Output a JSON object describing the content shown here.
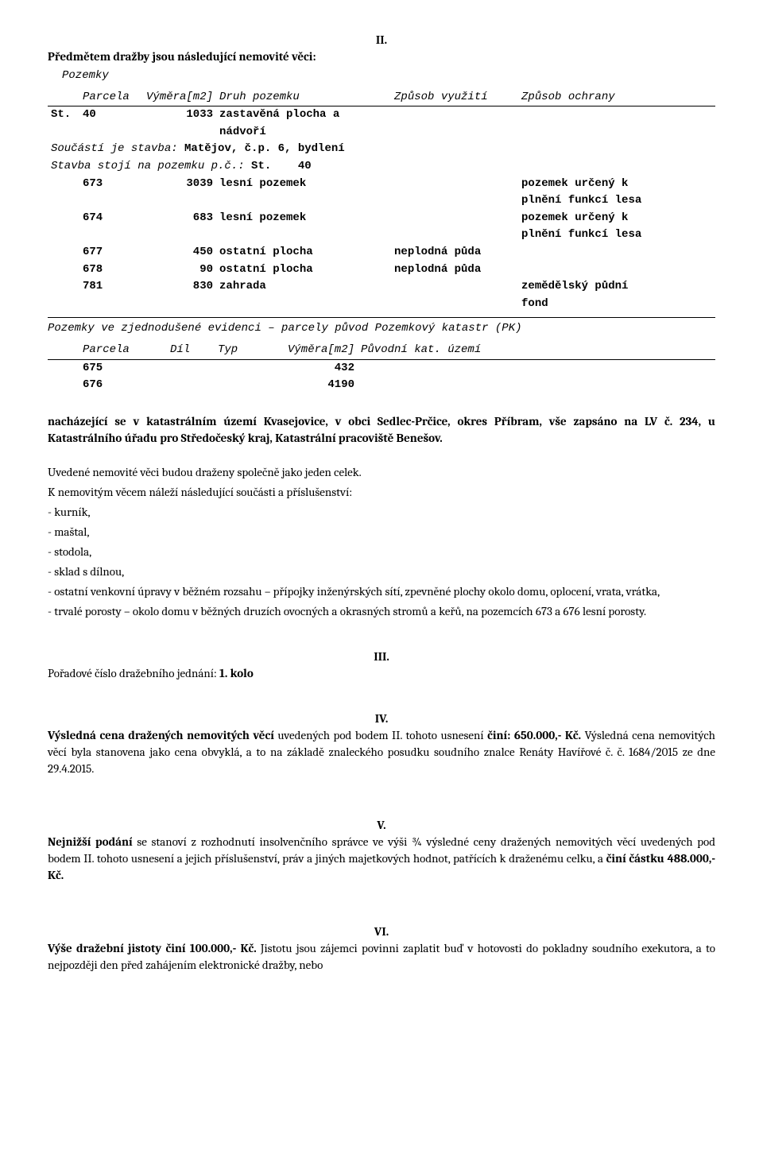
{
  "sectionII": {
    "num": "II.",
    "intro": "Předmětem dražby jsou následující nemovité věci:",
    "tableHeader": {
      "type_pozemky": "Pozemky",
      "h_parcela": "Parcela",
      "h_vymera": "Výměra[m2]",
      "h_druh": "Druh pozemku",
      "h_vyuziti": "Způsob využití",
      "h_ochrany": "Způsob ochrany"
    },
    "rows": [
      {
        "prefix": "St.",
        "parcela": "40",
        "vymera": "1033",
        "druh": "zastavěná plocha a",
        "druh2": "nádvoří",
        "vyuziti": "",
        "ochrany": ""
      },
      {
        "prefix": "",
        "parcela": "673",
        "vymera": "3039",
        "druh": "lesní pozemek",
        "vyuziti": "",
        "ochrany": "pozemek určený k",
        "ochrany2": "plnění funkcí lesa"
      },
      {
        "prefix": "",
        "parcela": "674",
        "vymera": "683",
        "druh": "lesní pozemek",
        "vyuziti": "",
        "ochrany": "pozemek určený k",
        "ochrany2": "plnění funkcí lesa"
      },
      {
        "prefix": "",
        "parcela": "677",
        "vymera": "450",
        "druh": "ostatní plocha",
        "vyuziti": "neplodná půda",
        "ochrany": ""
      },
      {
        "prefix": "",
        "parcela": "678",
        "vymera": "90",
        "druh": "ostatní plocha",
        "vyuziti": "neplodná půda",
        "ochrany": ""
      },
      {
        "prefix": "",
        "parcela": "781",
        "vymera": "830",
        "druh": "zahrada",
        "vyuziti": "",
        "ochrany": "zemědělský půdní",
        "ochrany2": "fond"
      }
    ],
    "note1_pre": "Součástí je stavba: ",
    "note1_b1": "Matějov, č.p. 6, bydlení",
    "note2_pre": "Stavba stojí na pozemku p.č.: ",
    "note2_b1": "St.",
    "note2_b2": "40",
    "simpleEvid": "Pozemky ve zjednodušené evidenci – parcely původ Pozemkový katastr (PK)",
    "simpHeader": {
      "h_parcela": "Parcela",
      "h_dil": "Díl",
      "h_typ": "Typ",
      "h_vymera": "Výměra[m2]",
      "h_puvodni": "Původní kat. území"
    },
    "simpRows": [
      {
        "parcela": "675",
        "dil": "",
        "typ": "",
        "vymera": "432",
        "puvodni": ""
      },
      {
        "parcela": "676",
        "dil": "",
        "typ": "",
        "vymera": "4190",
        "puvodni": ""
      }
    ],
    "location": {
      "pre": "nacházející se v katastrálním území Kvasejovice, v obci Sedlec-Prčice, okres Příbram, vše zapsáno na LV č. 234, u Katastrálního úřadu pro Středočeský kraj, Katastrální pracoviště Benešov."
    },
    "together": "Uvedené nemovité věci budou draženy společně jako jeden celek.",
    "accessoriesIntro": "K nemovitým věcem náleží následující součásti a příslušenství:",
    "accessories": [
      "- kurník,",
      "- maštal,",
      "- stodola,",
      "- sklad s dílnou,",
      "- ostatní venkovní úpravy v běžném rozsahu – přípojky inženýrských sítí, zpevněné plochy okolo domu, oplocení, vrata, vrátka,",
      "- trvalé porosty – okolo domu v běžných druzích ovocných a okrasných stromů a keřů, na pozemcích 673 a 676 lesní porosty."
    ]
  },
  "sectionIII": {
    "num": "III.",
    "line_pre": "Pořadové číslo dražebního jednání: ",
    "line_bold": "1. kolo"
  },
  "sectionIV": {
    "num": "IV.",
    "run1_b": "Výsledná cena dražených nemovitých věcí",
    "run1": " uvedených pod bodem II. tohoto usnesení ",
    "run2_b": "činí: 650.000,- Kč.",
    "run2": " Výsledná cena nemovitých věcí byla stanovena jako cena obvyklá, a to na základě znaleckého posudku soudního znalce Renáty Havířové č. č. 1684/2015 ze dne 29.4.2015."
  },
  "sectionV": {
    "num": "V.",
    "run1_b": "Nejnižší podání",
    "run1": " se stanoví z rozhodnutí insolvenčního správce ve výši ¾ výsledné ceny dražených nemovitých věcí uvedených pod bodem II. tohoto usnesení a jejich příslušenství, práv a jiných majetkových hodnot, patřících k draženému celku, a ",
    "run2_b": "činí částku 488.000,- Kč."
  },
  "sectionVI": {
    "num": "VI.",
    "run1_b": "Výše dražební jistoty činí 100.000,- Kč.",
    "run1": " Jistotu jsou zájemci povinni zaplatit buď v hotovosti do pokladny soudního exekutora, a to nejpozději den před zahájením elektronické dražby, nebo"
  }
}
